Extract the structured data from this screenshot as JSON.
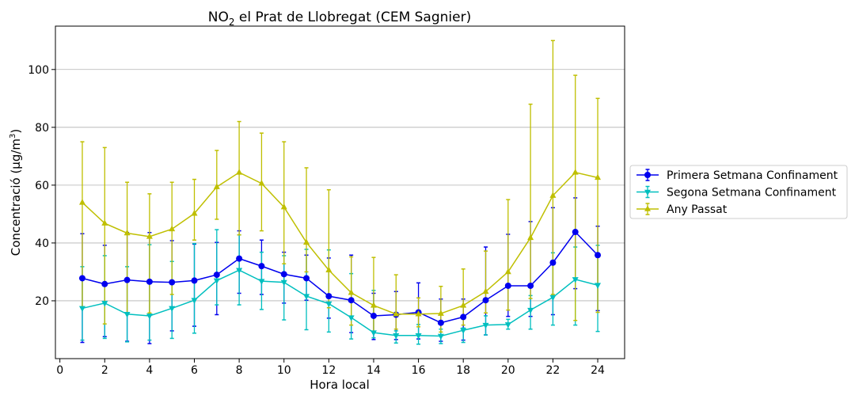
{
  "chart_data": {
    "type": "line",
    "title": {
      "main": "NO",
      "sub": "2",
      "rest": " el Prat de Llobregat (CEM Sagnier)"
    },
    "xlabel": "Hora local",
    "ylabel": {
      "main": "Concentració (µg/m",
      "sup": "3",
      "rest": ")"
    },
    "xlim": [
      -0.2,
      25.2
    ],
    "ylim": [
      0,
      115
    ],
    "xticks": [
      0,
      2,
      4,
      6,
      8,
      10,
      12,
      14,
      16,
      18,
      20,
      22,
      24
    ],
    "yticks": [
      20,
      40,
      60,
      80,
      100
    ],
    "grid": "horizontal",
    "legend_position": "right",
    "x": [
      1,
      2,
      3,
      4,
      5,
      6,
      7,
      8,
      9,
      10,
      11,
      12,
      13,
      14,
      15,
      16,
      17,
      18,
      19,
      20,
      21,
      22,
      23,
      24
    ],
    "series": [
      {
        "name": "Primera Setmana Confinament",
        "color": "#0000ee",
        "marker": "circle",
        "values": [
          27.8,
          25.8,
          27.2,
          26.6,
          26.4,
          27.0,
          29.0,
          34.6,
          32.0,
          29.2,
          27.8,
          21.6,
          20.2,
          14.8,
          15.2,
          16.0,
          12.4,
          14.4,
          20.2,
          25.2,
          25.2,
          33.2,
          43.8,
          35.8
        ],
        "err_low": [
          5.6,
          7.6,
          6.0,
          5.2,
          9.6,
          11.2,
          15.2,
          22.6,
          22.2,
          19.2,
          20.2,
          14.0,
          9.0,
          6.6,
          6.6,
          6.8,
          6.0,
          6.4,
          8.2,
          14.6,
          14.6,
          15.2,
          24.2,
          16.6
        ],
        "err_high": [
          43.2,
          39.2,
          43.6,
          43.6,
          40.8,
          39.6,
          40.2,
          44.2,
          41.0,
          36.8,
          35.8,
          34.8,
          35.8,
          22.6,
          23.2,
          26.2,
          20.6,
          20.6,
          38.6,
          43.0,
          47.4,
          52.2,
          55.6,
          45.8
        ]
      },
      {
        "name": "Segona Setmana Confinament",
        "color": "#00bfbf",
        "marker": "triangle-down",
        "values": [
          17.4,
          19.2,
          15.4,
          14.8,
          17.4,
          20.2,
          27.0,
          30.6,
          26.8,
          26.4,
          21.6,
          19.0,
          14.2,
          9.0,
          8.0,
          8.0,
          7.8,
          9.8,
          11.6,
          11.8,
          16.8,
          21.2,
          27.4,
          25.4
        ],
        "err_low": [
          6.4,
          7.0,
          5.8,
          6.4,
          7.0,
          8.8,
          18.6,
          18.6,
          17.0,
          13.4,
          10.0,
          9.2,
          6.8,
          7.2,
          5.4,
          5.0,
          5.2,
          5.6,
          8.2,
          10.2,
          10.2,
          11.6,
          11.6,
          9.4
        ],
        "err_high": [
          31.8,
          35.6,
          31.8,
          39.4,
          33.6,
          39.8,
          44.6,
          42.8,
          36.8,
          35.6,
          37.8,
          37.6,
          29.4,
          23.6,
          9.6,
          11.8,
          10.2,
          10.6,
          14.8,
          13.6,
          21.8,
          36.6,
          38.6,
          39.2
        ]
      },
      {
        "name": "Any Passat",
        "color": "#bfbf00",
        "marker": "triangle-up",
        "values": [
          54.0,
          46.8,
          43.4,
          42.2,
          44.8,
          50.2,
          59.4,
          64.4,
          60.6,
          52.4,
          40.2,
          30.6,
          22.8,
          18.4,
          15.4,
          15.4,
          15.6,
          18.4,
          23.2,
          30.0,
          41.8,
          56.4,
          64.4,
          62.6
        ],
        "err_low": [
          18.0,
          12.0,
          15.6,
          15.8,
          22.2,
          41.0,
          48.2,
          42.8,
          44.2,
          32.8,
          30.0,
          17.6,
          11.6,
          9.2,
          10.2,
          11.0,
          9.2,
          11.6,
          15.8,
          16.8,
          20.8,
          22.2,
          13.2,
          16.0
        ],
        "err_high": [
          75.0,
          73.0,
          61.0,
          57.0,
          61.0,
          62.0,
          72.0,
          82.0,
          78.0,
          75.0,
          66.0,
          58.4,
          35.2,
          35.0,
          29.0,
          21.0,
          25.0,
          31.0,
          37.2,
          55.0,
          88.0,
          110.0,
          98.0,
          90.0
        ]
      }
    ]
  }
}
